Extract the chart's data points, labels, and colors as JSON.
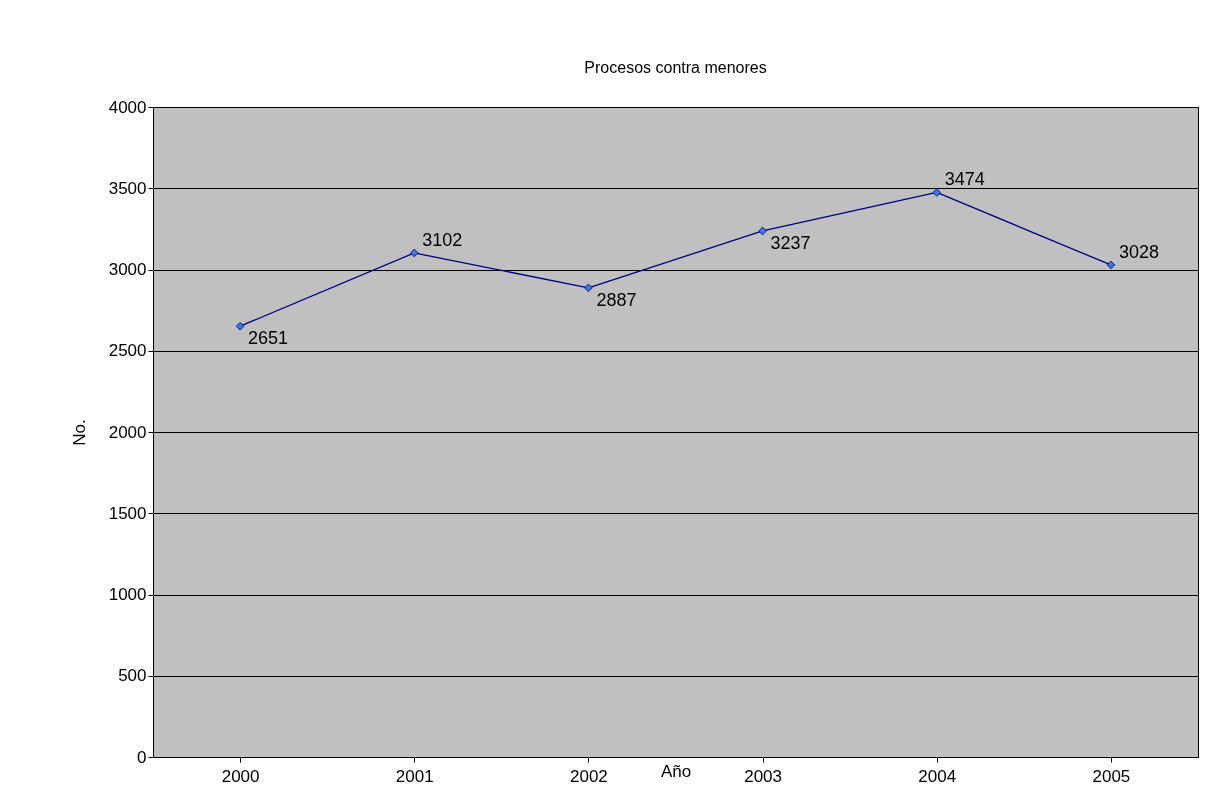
{
  "chart_data": {
    "type": "line",
    "title": "Procesos contra menores",
    "xlabel": "Año",
    "ylabel": "No.",
    "categories": [
      "2000",
      "2001",
      "2002",
      "2003",
      "2004",
      "2005"
    ],
    "series": [
      {
        "color": "#000080",
        "values": [
          2651,
          3102,
          2887,
          3237,
          3474,
          3028
        ]
      }
    ],
    "ylim": [
      0,
      4000
    ],
    "yticks": [
      0,
      500,
      1000,
      1500,
      2000,
      2500,
      3000,
      3500,
      4000
    ],
    "grid": "y",
    "marker": "diamond",
    "data_labels": true
  }
}
